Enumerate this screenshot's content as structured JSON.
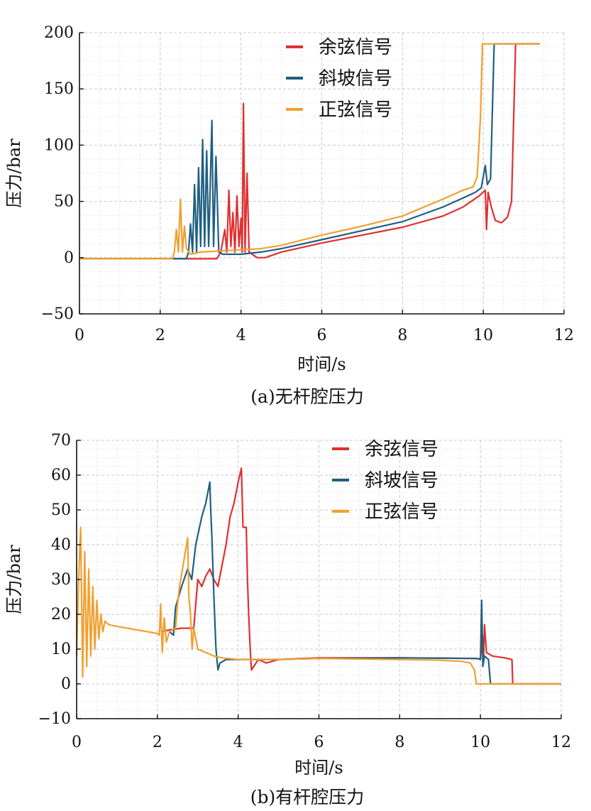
{
  "chart_data": [
    {
      "type": "line",
      "caption": "(a)无杆腔压力",
      "xlabel": "时间/s",
      "ylabel": "压力/bar",
      "xlim": [
        0,
        12
      ],
      "ylim": [
        -50,
        200
      ],
      "xticks": [
        0,
        2,
        4,
        6,
        8,
        10,
        12
      ],
      "yticks": [
        -50,
        0,
        50,
        100,
        150,
        200
      ],
      "grid": true,
      "legend_position": "top-center",
      "series": [
        {
          "name": "余弦信号",
          "color": "#e03030",
          "points": [
            [
              0,
              -1
            ],
            [
              3.4,
              -1
            ],
            [
              3.5,
              5
            ],
            [
              3.6,
              25
            ],
            [
              3.65,
              5
            ],
            [
              3.7,
              60
            ],
            [
              3.75,
              10
            ],
            [
              3.8,
              40
            ],
            [
              3.85,
              5
            ],
            [
              3.9,
              55
            ],
            [
              3.95,
              10
            ],
            [
              4.0,
              35
            ],
            [
              4.03,
              5
            ],
            [
              4.06,
              137
            ],
            [
              4.1,
              5
            ],
            [
              4.15,
              75
            ],
            [
              4.2,
              5
            ],
            [
              4.4,
              0
            ],
            [
              4.6,
              0
            ],
            [
              5.0,
              5
            ],
            [
              6.0,
              13
            ],
            [
              7.0,
              20
            ],
            [
              8.0,
              27
            ],
            [
              9.0,
              37
            ],
            [
              9.5,
              45
            ],
            [
              9.9,
              55
            ],
            [
              10.05,
              60
            ],
            [
              10.08,
              25
            ],
            [
              10.12,
              58
            ],
            [
              10.2,
              45
            ],
            [
              10.3,
              33
            ],
            [
              10.45,
              31
            ],
            [
              10.6,
              36
            ],
            [
              10.7,
              50
            ],
            [
              10.8,
              190
            ],
            [
              11.4,
              190
            ]
          ]
        },
        {
          "name": "斜坡信号",
          "color": "#1f5f82",
          "points": [
            [
              0,
              -1
            ],
            [
              2.65,
              -1
            ],
            [
              2.7,
              5
            ],
            [
              2.75,
              30
            ],
            [
              2.8,
              5
            ],
            [
              2.85,
              65
            ],
            [
              2.9,
              5
            ],
            [
              2.95,
              80
            ],
            [
              3.0,
              10
            ],
            [
              3.05,
              105
            ],
            [
              3.1,
              10
            ],
            [
              3.15,
              95
            ],
            [
              3.2,
              10
            ],
            [
              3.28,
              122
            ],
            [
              3.32,
              10
            ],
            [
              3.38,
              90
            ],
            [
              3.45,
              5
            ],
            [
              3.55,
              3
            ],
            [
              4.0,
              3
            ],
            [
              4.5,
              5
            ],
            [
              5.0,
              8
            ],
            [
              6.0,
              16
            ],
            [
              7.0,
              24
            ],
            [
              8.0,
              32
            ],
            [
              9.0,
              45
            ],
            [
              9.5,
              53
            ],
            [
              9.8,
              58
            ],
            [
              9.95,
              62
            ],
            [
              10.05,
              82
            ],
            [
              10.1,
              65
            ],
            [
              10.18,
              70
            ],
            [
              10.27,
              190
            ],
            [
              11.4,
              190
            ]
          ]
        },
        {
          "name": "正弦信号",
          "color": "#f0a030",
          "points": [
            [
              0,
              -1
            ],
            [
              2.3,
              -1
            ],
            [
              2.35,
              5
            ],
            [
              2.4,
              25
            ],
            [
              2.45,
              5
            ],
            [
              2.5,
              52
            ],
            [
              2.55,
              5
            ],
            [
              2.6,
              28
            ],
            [
              2.65,
              8
            ],
            [
              2.75,
              3
            ],
            [
              3.0,
              5
            ],
            [
              3.5,
              6
            ],
            [
              4.0,
              7
            ],
            [
              4.5,
              8
            ],
            [
              5.0,
              11
            ],
            [
              6.0,
              20
            ],
            [
              7.0,
              28
            ],
            [
              8.0,
              37
            ],
            [
              9.0,
              52
            ],
            [
              9.5,
              60
            ],
            [
              9.75,
              63
            ],
            [
              9.85,
              72
            ],
            [
              9.93,
              125
            ],
            [
              9.98,
              190
            ],
            [
              11.4,
              190
            ]
          ]
        }
      ]
    },
    {
      "type": "line",
      "caption": "(b)有杆腔压力",
      "xlabel": "时间/s",
      "ylabel": "压力/bar",
      "xlim": [
        0,
        12
      ],
      "ylim": [
        -10,
        70
      ],
      "xticks": [
        0,
        2,
        4,
        6,
        8,
        10,
        12
      ],
      "yticks": [
        -10,
        0,
        10,
        20,
        30,
        40,
        50,
        60,
        70
      ],
      "grid": true,
      "legend_position": "top-right",
      "series": [
        {
          "name": "余弦信号",
          "color": "#e03030",
          "points": [
            [
              2.1,
              15
            ],
            [
              2.3,
              15.5
            ],
            [
              2.6,
              16
            ],
            [
              2.9,
              16
            ],
            [
              3.0,
              30
            ],
            [
              3.1,
              28
            ],
            [
              3.2,
              31
            ],
            [
              3.3,
              33
            ],
            [
              3.4,
              30
            ],
            [
              3.5,
              28
            ],
            [
              3.6,
              34
            ],
            [
              3.7,
              40
            ],
            [
              3.8,
              48
            ],
            [
              3.9,
              52
            ],
            [
              4.0,
              58
            ],
            [
              4.08,
              62
            ],
            [
              4.12,
              45
            ],
            [
              4.2,
              45
            ],
            [
              4.23,
              30
            ],
            [
              4.26,
              20
            ],
            [
              4.3,
              10
            ],
            [
              4.33,
              4
            ],
            [
              4.5,
              7
            ],
            [
              4.7,
              6
            ],
            [
              5.0,
              7
            ],
            [
              6.0,
              7.5
            ],
            [
              8.0,
              7.5
            ],
            [
              9.8,
              7.3
            ],
            [
              10.0,
              7.2
            ],
            [
              10.05,
              14
            ],
            [
              10.08,
              8
            ],
            [
              10.1,
              17
            ],
            [
              10.15,
              9
            ],
            [
              10.3,
              8
            ],
            [
              10.6,
              7.5
            ],
            [
              10.78,
              7
            ],
            [
              10.8,
              0
            ],
            [
              12.0,
              0
            ]
          ]
        },
        {
          "name": "斜坡信号",
          "color": "#1f5f82",
          "points": [
            [
              2.3,
              15
            ],
            [
              2.4,
              14
            ],
            [
              2.45,
              22
            ],
            [
              2.6,
              28
            ],
            [
              2.75,
              33
            ],
            [
              2.85,
              30
            ],
            [
              2.95,
              40
            ],
            [
              3.1,
              48
            ],
            [
              3.2,
              52
            ],
            [
              3.3,
              58
            ],
            [
              3.32,
              50
            ],
            [
              3.35,
              42
            ],
            [
              3.4,
              25
            ],
            [
              3.45,
              10
            ],
            [
              3.5,
              4
            ],
            [
              3.55,
              6
            ],
            [
              3.7,
              7
            ],
            [
              4.0,
              7
            ],
            [
              5.0,
              7
            ],
            [
              6.0,
              7.3
            ],
            [
              8.0,
              7.5
            ],
            [
              9.9,
              7.3
            ],
            [
              10.0,
              7
            ],
            [
              10.03,
              24
            ],
            [
              10.06,
              5
            ],
            [
              10.1,
              8
            ],
            [
              10.2,
              7
            ],
            [
              10.25,
              0
            ],
            [
              12.0,
              0
            ]
          ]
        },
        {
          "name": "正弦信号",
          "color": "#f0a030",
          "points": [
            [
              0,
              8
            ],
            [
              0.05,
              30
            ],
            [
              0.1,
              45
            ],
            [
              0.15,
              2
            ],
            [
              0.2,
              38
            ],
            [
              0.25,
              5
            ],
            [
              0.3,
              33
            ],
            [
              0.35,
              8
            ],
            [
              0.4,
              28
            ],
            [
              0.45,
              10
            ],
            [
              0.5,
              24
            ],
            [
              0.55,
              13
            ],
            [
              0.6,
              20
            ],
            [
              0.65,
              15
            ],
            [
              0.7,
              18
            ],
            [
              0.8,
              17
            ],
            [
              1.0,
              16.5
            ],
            [
              1.5,
              15.5
            ],
            [
              2.0,
              14.5
            ],
            [
              2.05,
              14
            ],
            [
              2.08,
              23
            ],
            [
              2.12,
              9
            ],
            [
              2.17,
              19
            ],
            [
              2.22,
              12
            ],
            [
              2.3,
              15
            ],
            [
              2.45,
              16
            ],
            [
              2.5,
              23
            ],
            [
              2.55,
              28
            ],
            [
              2.65,
              35
            ],
            [
              2.75,
              42
            ],
            [
              2.78,
              25
            ],
            [
              2.82,
              20
            ],
            [
              2.86,
              10
            ],
            [
              2.9,
              16
            ],
            [
              3.0,
              10
            ],
            [
              3.2,
              9
            ],
            [
              3.4,
              8
            ],
            [
              3.6,
              7.5
            ],
            [
              4.0,
              7
            ],
            [
              5.0,
              7
            ],
            [
              6.0,
              7.3
            ],
            [
              8.0,
              7
            ],
            [
              9.0,
              6.8
            ],
            [
              9.5,
              6.5
            ],
            [
              9.75,
              6
            ],
            [
              9.85,
              4
            ],
            [
              9.9,
              0
            ],
            [
              12.0,
              0
            ]
          ]
        }
      ]
    }
  ]
}
